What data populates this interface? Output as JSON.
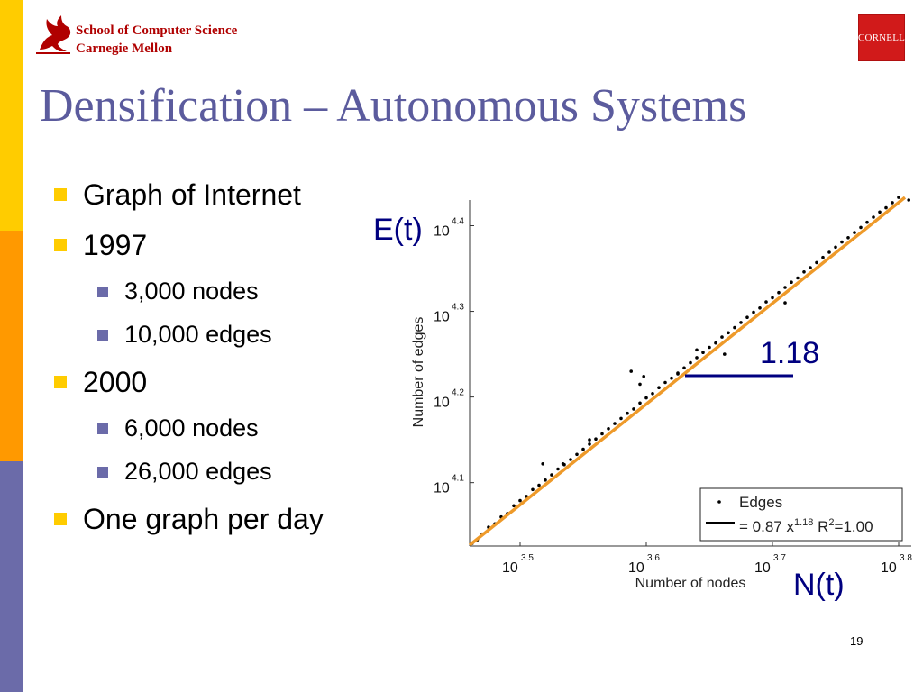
{
  "header": {
    "school_line1": "School of Computer Science",
    "school_line2": "Carnegie Mellon",
    "cornell_logo_text": "CORNELL"
  },
  "slide": {
    "title": "Densification – Autonomous Systems",
    "page_number": "19",
    "bullets": [
      {
        "text": "Graph of Internet",
        "level": 1
      },
      {
        "text": "1997",
        "level": 1
      },
      {
        "text": "3,000 nodes",
        "level": 2
      },
      {
        "text": "10,000 edges",
        "level": 2
      },
      {
        "text": "2000",
        "level": 1
      },
      {
        "text": "6,000 nodes",
        "level": 2
      },
      {
        "text": "26,000 edges",
        "level": 2
      },
      {
        "text": "One graph per day",
        "level": 1
      }
    ]
  },
  "colors": {
    "title": "#5b5b9d",
    "bar_top": "#ffcc00",
    "bar_middle": "#ff9900",
    "bar_bottom": "#6b6ba9",
    "fit_line": "#ee9a2a",
    "annotation": "#000080"
  },
  "chart_data": {
    "type": "scatter",
    "scale": "log-log",
    "xlabel": "Number of nodes",
    "ylabel": "Number of edges",
    "x_axis_annotation": "N(t)",
    "y_axis_annotation": "E(t)",
    "slope_label": "1.18",
    "xlim": [
      3.46,
      3.81
    ],
    "ylim": [
      4.026,
      4.43
    ],
    "x_ticks": [
      {
        "exp": 3.5,
        "base": "10",
        "sup": "3.5"
      },
      {
        "exp": 3.6,
        "base": "10",
        "sup": "3.6"
      },
      {
        "exp": 3.7,
        "base": "10",
        "sup": "3.7"
      },
      {
        "exp": 3.8,
        "base": "10",
        "sup": "3.8"
      }
    ],
    "y_ticks": [
      {
        "exp": 4.1,
        "base": "10",
        "sup": "4.1"
      },
      {
        "exp": 4.2,
        "base": "10",
        "sup": "4.2"
      },
      {
        "exp": 4.3,
        "base": "10",
        "sup": "4.3"
      },
      {
        "exp": 4.4,
        "base": "10",
        "sup": "4.4"
      }
    ],
    "legend": {
      "placement": "bottom-right",
      "items": [
        {
          "label": "Edges",
          "marker": "dot"
        },
        {
          "label_parts": [
            "= 0.87 x",
            "1.18",
            " R",
            "2",
            "=1.00"
          ],
          "marker": "line"
        }
      ]
    },
    "fit": {
      "coefficient": 0.87,
      "exponent": 1.18,
      "r_squared": 1.0
    },
    "series": [
      {
        "name": "Edges",
        "x": [
          3.462,
          3.466,
          3.47,
          3.475,
          3.48,
          3.485,
          3.49,
          3.495,
          3.5,
          3.505,
          3.51,
          3.515,
          3.52,
          3.525,
          3.53,
          3.535,
          3.54,
          3.545,
          3.55,
          3.555,
          3.56,
          3.565,
          3.57,
          3.575,
          3.58,
          3.585,
          3.59,
          3.595,
          3.6,
          3.605,
          3.61,
          3.615,
          3.62,
          3.625,
          3.63,
          3.635,
          3.64,
          3.645,
          3.65,
          3.655,
          3.66,
          3.665,
          3.67,
          3.675,
          3.68,
          3.685,
          3.69,
          3.695,
          3.7,
          3.705,
          3.71,
          3.715,
          3.72,
          3.725,
          3.73,
          3.735,
          3.74,
          3.745,
          3.75,
          3.755,
          3.76,
          3.765,
          3.77,
          3.775,
          3.78,
          3.785,
          3.79,
          3.795,
          3.8,
          3.808,
          3.534,
          3.518,
          3.555,
          3.598,
          3.625,
          3.588,
          3.662,
          3.71,
          3.64,
          3.595
        ],
        "y": [
          4.029,
          4.033,
          4.04,
          4.048,
          4.052,
          4.06,
          4.064,
          4.073,
          4.079,
          4.084,
          4.092,
          4.097,
          4.103,
          4.109,
          4.116,
          4.121,
          4.127,
          4.133,
          4.139,
          4.145,
          4.151,
          4.157,
          4.163,
          4.169,
          4.175,
          4.181,
          4.186,
          4.193,
          4.199,
          4.204,
          4.211,
          4.217,
          4.222,
          4.228,
          4.234,
          4.24,
          4.246,
          4.252,
          4.258,
          4.263,
          4.27,
          4.275,
          4.281,
          4.287,
          4.293,
          4.299,
          4.304,
          4.311,
          4.316,
          4.322,
          4.328,
          4.334,
          4.339,
          4.346,
          4.351,
          4.357,
          4.363,
          4.369,
          4.375,
          4.381,
          4.386,
          4.392,
          4.398,
          4.404,
          4.41,
          4.416,
          4.421,
          4.427,
          4.433,
          4.43,
          4.122,
          4.122,
          4.15,
          4.224,
          4.227,
          4.23,
          4.25,
          4.31,
          4.255,
          4.215
        ]
      }
    ]
  }
}
